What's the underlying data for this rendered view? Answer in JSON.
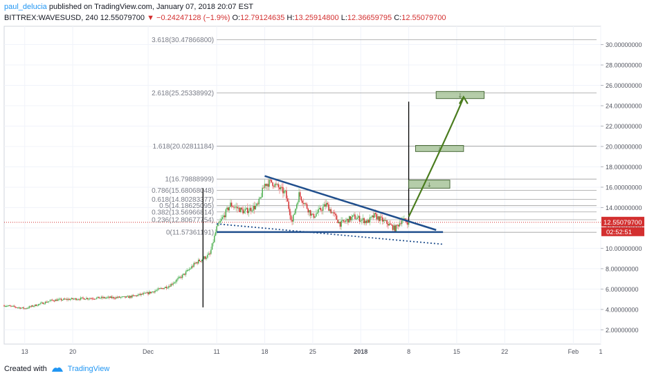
{
  "header": {
    "author": "paul_delucia",
    "published": "published on TradingView.com, January 07, 2018 20:07 EST",
    "symbol": "BITTREX:WAVESUSD, 240",
    "last": "12.55079700",
    "change": "−0.24247128 (−1.9%)",
    "o_label": "O:",
    "o_value": "12.79124635",
    "h_label": "H:",
    "h_value": "13.25914800",
    "l_label": "L:",
    "l_value": "12.36659795",
    "c_label": "C:",
    "c_value": "12.55079700"
  },
  "footer": {
    "created_with": "Created with",
    "brand": "TradingView"
  },
  "colors": {
    "up": "#4caf50",
    "down": "#d32f2f",
    "wick_up": "#a5d6a7",
    "wick_down": "#ef9a9a",
    "trend": "#1f4e8c",
    "arrow": "#4a7c1e",
    "target_fill": "#a8c49a",
    "target_stroke": "#4a6b3a",
    "price_line": "#d32f2f",
    "fib": "#9e9e9e",
    "grid": "#f0f3fa"
  },
  "chart_data": {
    "type": "candlestick",
    "title": "",
    "xlabel": "",
    "ylabel": "",
    "ylim": [
      0.6,
      31.8
    ],
    "y_ticks": [
      "2.00000000",
      "4.00000000",
      "6.00000000",
      "8.00000000",
      "10.00000000",
      "12.00000000",
      "14.00000000",
      "16.00000000",
      "18.00000000",
      "20.00000000",
      "22.00000000",
      "24.00000000",
      "26.00000000",
      "28.00000000",
      "30.00000000"
    ],
    "x_ticks": [
      {
        "label": "13",
        "date": "2017-11-13"
      },
      {
        "label": "20",
        "date": "2017-11-20"
      },
      {
        "label": "Dec",
        "date": "2017-12-01"
      },
      {
        "label": "11",
        "date": "2017-12-11"
      },
      {
        "label": "18",
        "date": "2017-12-18"
      },
      {
        "label": "25",
        "date": "2017-12-25"
      },
      {
        "label": "2018",
        "date": "2018-01-01"
      },
      {
        "label": "8",
        "date": "2018-01-08"
      },
      {
        "label": "15",
        "date": "2018-01-15"
      },
      {
        "label": "22",
        "date": "2018-01-22"
      },
      {
        "label": "Feb",
        "date": "2018-02-01"
      },
      {
        "label": "1",
        "date": "2018-02-05"
      }
    ],
    "x_range": [
      "2017-11-10",
      "2018-02-05"
    ],
    "current_price": {
      "value": 12.5508,
      "label": "12.55079700",
      "countdown": "02:52:51"
    },
    "fib_levels": [
      {
        "ratio": "0",
        "value": 11.57361191,
        "label": "0(11.57361191)"
      },
      {
        "ratio": "0.236",
        "value": 12.80677754,
        "label": "0.236(12.80677754)"
      },
      {
        "ratio": "0.382",
        "value": 13.56966814,
        "label": "0.382(13.56966814)"
      },
      {
        "ratio": "0.5",
        "value": 14.18625095,
        "label": "0.5(14.18625095)"
      },
      {
        "ratio": "0.618",
        "value": 14.80283377,
        "label": "0.618(14.80283377)"
      },
      {
        "ratio": "0.786",
        "value": 15.68068048,
        "label": "0.786(15.68068048)"
      },
      {
        "ratio": "1",
        "value": 16.79888999,
        "label": "1(16.79888999)"
      },
      {
        "ratio": "1.618",
        "value": 20.02811184,
        "label": "1.618(20.02811184)"
      },
      {
        "ratio": "2.618",
        "value": 25.25338992,
        "label": "2.618(25.25338992)"
      },
      {
        "ratio": "3.618",
        "value": 30.478668,
        "label": "3.618(30.47866800)"
      }
    ],
    "anchors": [
      {
        "name": "hl0",
        "date": "2017-11-10",
        "price": 4.4
      },
      {
        "name": "hl1",
        "date": "2017-11-13",
        "price": 4.1
      },
      {
        "name": "hl2",
        "date": "2017-11-17",
        "price": 4.9
      },
      {
        "name": "hl3",
        "date": "2017-11-22",
        "price": 5.1
      },
      {
        "name": "hl4",
        "date": "2017-11-28",
        "price": 5.2
      },
      {
        "name": "hl5",
        "date": "2017-12-01",
        "price": 5.6
      },
      {
        "name": "hl6",
        "date": "2017-12-04",
        "price": 6.3
      },
      {
        "name": "hl7",
        "date": "2017-12-06",
        "price": 7.3
      },
      {
        "name": "hl8",
        "date": "2017-12-08",
        "price": 8.6
      },
      {
        "name": "hl9",
        "date": "2017-12-10",
        "price": 9.4
      },
      {
        "name": "hl10",
        "date": "2017-12-11",
        "price": 12.0
      },
      {
        "name": "hl11",
        "date": "2017-12-13",
        "price": 14.3
      },
      {
        "name": "hl12",
        "date": "2017-12-15",
        "price": 13.6
      },
      {
        "name": "hl13",
        "date": "2017-12-17",
        "price": 14.2
      },
      {
        "name": "hl14",
        "date": "2017-12-18",
        "price": 16.3
      },
      {
        "name": "hl15",
        "date": "2017-12-19",
        "price": 16.5
      },
      {
        "name": "hl16",
        "date": "2017-12-21",
        "price": 15.4
      },
      {
        "name": "hl17",
        "date": "2017-12-22",
        "price": 12.6
      },
      {
        "name": "hl18",
        "date": "2017-12-23",
        "price": 15.3
      },
      {
        "name": "hl19",
        "date": "2017-12-25",
        "price": 13.1
      },
      {
        "name": "hl20",
        "date": "2017-12-27",
        "price": 14.3
      },
      {
        "name": "hl21",
        "date": "2017-12-29",
        "price": 12.4
      },
      {
        "name": "hl22",
        "date": "2017-12-31",
        "price": 13.1
      },
      {
        "name": "hl23",
        "date": "2018-01-02",
        "price": 12.6
      },
      {
        "name": "hl24",
        "date": "2018-01-03",
        "price": 13.2
      },
      {
        "name": "hl25",
        "date": "2018-01-05",
        "price": 12.4
      },
      {
        "name": "hl26",
        "date": "2018-01-06",
        "price": 11.9
      },
      {
        "name": "hl27",
        "date": "2018-01-07",
        "price": 12.8
      },
      {
        "name": "hl28",
        "date": "2018-01-08",
        "price": 12.55
      }
    ],
    "annotations": {
      "vline_left": {
        "date": "2017-12-09",
        "top": 15.9,
        "bottom": 4.2
      },
      "vline_right": {
        "date": "2018-01-08",
        "top": 24.4,
        "bottom": 12.6
      },
      "wedge_upper": [
        {
          "date": "2017-12-18",
          "price": 17.1
        },
        {
          "date": "2018-01-12",
          "price": 11.8
        }
      ],
      "wedge_support": [
        {
          "date": "2017-12-11",
          "price": 11.6
        },
        {
          "date": "2018-01-13",
          "price": 11.6
        }
      ],
      "wedge_lower": [
        {
          "date": "2017-12-11",
          "price": 12.4
        },
        {
          "date": "2018-01-13",
          "price": 10.4
        }
      ],
      "targets": [
        {
          "date_from": "2018-01-08",
          "date_to": "2018-01-14",
          "low": 15.9,
          "high": 16.7
        },
        {
          "date_from": "2018-01-09",
          "date_to": "2018-01-16",
          "low": 19.5,
          "high": 20.1
        },
        {
          "date_from": "2018-01-12",
          "date_to": "2018-01-19",
          "low": 24.7,
          "high": 25.4
        }
      ],
      "arrow": [
        {
          "date": "2018-01-08",
          "price": 13.1
        },
        {
          "date": "2018-01-11",
          "price": 17.3
        },
        {
          "date": "2018-01-14",
          "price": 21.6
        },
        {
          "date": "2018-01-16",
          "price": 24.8
        }
      ]
    }
  }
}
